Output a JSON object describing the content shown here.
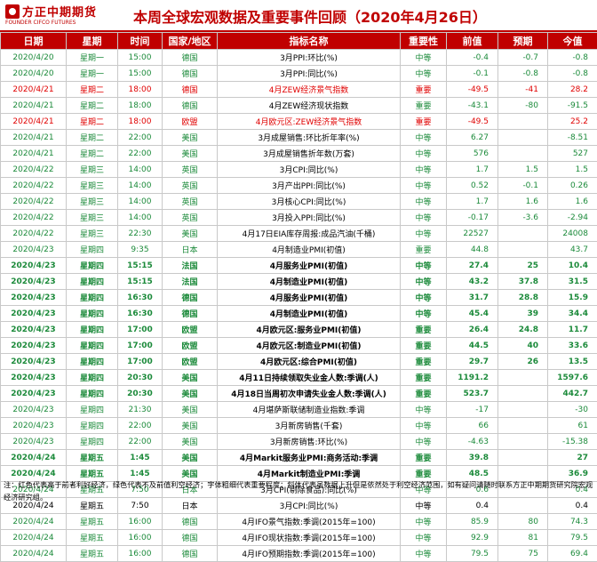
{
  "header": {
    "logo_cn": "方正中期期货",
    "logo_en": "FOUNDER CIFCO FUTURES",
    "title": "本周全球宏观数据及重要事件回顾（2020年4月26日）"
  },
  "colors": {
    "red": "#e00000",
    "green": "#1b8a3a",
    "black": "#000000",
    "header_bg": "#c00000"
  },
  "columns": [
    "日期",
    "星期",
    "时间",
    "国家/地区",
    "指标名称",
    "重要性",
    "前值",
    "预期",
    "今值"
  ],
  "rows": [
    {
      "date": "2020/4/20",
      "week": "星期一",
      "time": "15:00",
      "country": "德国",
      "name": "3月PPI:环比(%)",
      "importance": "中等",
      "prev": "-0.4",
      "forecast": "-0.7",
      "actual": "-0.8",
      "color": "green",
      "bold": false
    },
    {
      "date": "2020/4/20",
      "week": "星期一",
      "time": "15:00",
      "country": "德国",
      "name": "3月PPI:同比(%)",
      "importance": "中等",
      "prev": "-0.1",
      "forecast": "-0.8",
      "actual": "-0.8",
      "color": "green",
      "bold": false
    },
    {
      "date": "2020/4/21",
      "week": "星期二",
      "time": "18:00",
      "country": "德国",
      "name": "4月ZEW经济景气指数",
      "importance": "重要",
      "prev": "-49.5",
      "forecast": "-41",
      "actual": "28.2",
      "color": "red",
      "bold": false
    },
    {
      "date": "2020/4/21",
      "week": "星期二",
      "time": "18:00",
      "country": "德国",
      "name": "4月ZEW经济现状指数",
      "importance": "重要",
      "prev": "-43.1",
      "forecast": "-80",
      "actual": "-91.5",
      "color": "green",
      "bold": false
    },
    {
      "date": "2020/4/21",
      "week": "星期二",
      "time": "18:00",
      "country": "欧盟",
      "name": "4月欧元区:ZEW经济景气指数",
      "importance": "重要",
      "prev": "-49.5",
      "forecast": "",
      "actual": "25.2",
      "color": "red",
      "bold": false
    },
    {
      "date": "2020/4/21",
      "week": "星期二",
      "time": "22:00",
      "country": "美国",
      "name": "3月成屋销售:环比折年率(%)",
      "importance": "中等",
      "prev": "6.27",
      "forecast": "",
      "actual": "-8.51",
      "color": "green",
      "bold": false
    },
    {
      "date": "2020/4/21",
      "week": "星期二",
      "time": "22:00",
      "country": "美国",
      "name": "3月成屋销售折年数(万套)",
      "importance": "中等",
      "prev": "576",
      "forecast": "",
      "actual": "527",
      "color": "green",
      "bold": false
    },
    {
      "date": "2020/4/22",
      "week": "星期三",
      "time": "14:00",
      "country": "英国",
      "name": "3月CPI:同比(%)",
      "importance": "中等",
      "prev": "1.7",
      "forecast": "1.5",
      "actual": "1.5",
      "color": "green",
      "bold": false
    },
    {
      "date": "2020/4/22",
      "week": "星期三",
      "time": "14:00",
      "country": "英国",
      "name": "3月产出PPI:同比(%)",
      "importance": "中等",
      "prev": "0.52",
      "forecast": "-0.1",
      "actual": "0.26",
      "color": "green",
      "bold": false
    },
    {
      "date": "2020/4/22",
      "week": "星期三",
      "time": "14:00",
      "country": "英国",
      "name": "3月核心CPI:同比(%)",
      "importance": "中等",
      "prev": "1.7",
      "forecast": "1.6",
      "actual": "1.6",
      "color": "green",
      "bold": false
    },
    {
      "date": "2020/4/22",
      "week": "星期三",
      "time": "14:00",
      "country": "英国",
      "name": "3月投入PPI:同比(%)",
      "importance": "中等",
      "prev": "-0.17",
      "forecast": "-3.6",
      "actual": "-2.94",
      "color": "green",
      "bold": false
    },
    {
      "date": "2020/4/22",
      "week": "星期三",
      "time": "22:30",
      "country": "美国",
      "name": "4月17日EIA库存周报:成品汽油(千桶)",
      "importance": "中等",
      "prev": "22527",
      "forecast": "",
      "actual": "24008",
      "color": "green",
      "bold": false
    },
    {
      "date": "2020/4/23",
      "week": "星期四",
      "time": "9:35",
      "country": "日本",
      "name": "4月制造业PMI(初值)",
      "importance": "重要",
      "prev": "44.8",
      "forecast": "",
      "actual": "43.7",
      "color": "green",
      "bold": false
    },
    {
      "date": "2020/4/23",
      "week": "星期四",
      "time": "15:15",
      "country": "法国",
      "name": "4月服务业PMI(初值)",
      "importance": "中等",
      "prev": "27.4",
      "forecast": "25",
      "actual": "10.4",
      "color": "green",
      "bold": true
    },
    {
      "date": "2020/4/23",
      "week": "星期四",
      "time": "15:15",
      "country": "法国",
      "name": "4月制造业PMI(初值)",
      "importance": "中等",
      "prev": "43.2",
      "forecast": "37.8",
      "actual": "31.5",
      "color": "green",
      "bold": true
    },
    {
      "date": "2020/4/23",
      "week": "星期四",
      "time": "16:30",
      "country": "德国",
      "name": "4月服务业PMI(初值)",
      "importance": "中等",
      "prev": "31.7",
      "forecast": "28.8",
      "actual": "15.9",
      "color": "green",
      "bold": true
    },
    {
      "date": "2020/4/23",
      "week": "星期四",
      "time": "16:30",
      "country": "德国",
      "name": "4月制造业PMI(初值)",
      "importance": "中等",
      "prev": "45.4",
      "forecast": "39",
      "actual": "34.4",
      "color": "green",
      "bold": true
    },
    {
      "date": "2020/4/23",
      "week": "星期四",
      "time": "17:00",
      "country": "欧盟",
      "name": "4月欧元区:服务业PMI(初值)",
      "importance": "重要",
      "prev": "26.4",
      "forecast": "24.8",
      "actual": "11.7",
      "color": "green",
      "bold": true
    },
    {
      "date": "2020/4/23",
      "week": "星期四",
      "time": "17:00",
      "country": "欧盟",
      "name": "4月欧元区:制造业PMI(初值)",
      "importance": "重要",
      "prev": "44.5",
      "forecast": "40",
      "actual": "33.6",
      "color": "green",
      "bold": true
    },
    {
      "date": "2020/4/23",
      "week": "星期四",
      "time": "17:00",
      "country": "欧盟",
      "name": "4月欧元区:综合PMI(初值)",
      "importance": "重要",
      "prev": "29.7",
      "forecast": "26",
      "actual": "13.5",
      "color": "green",
      "bold": true
    },
    {
      "date": "2020/4/23",
      "week": "星期四",
      "time": "20:30",
      "country": "美国",
      "name": "4月11日持续领取失业金人数:季调(人)",
      "importance": "重要",
      "prev": "1191.2",
      "forecast": "",
      "actual": "1597.6",
      "color": "green",
      "bold": true
    },
    {
      "date": "2020/4/23",
      "week": "星期四",
      "time": "20:30",
      "country": "美国",
      "name": "4月18日当周初次申请失业金人数:季调(人)",
      "importance": "重要",
      "prev": "523.7",
      "forecast": "",
      "actual": "442.7",
      "color": "green",
      "bold": true
    },
    {
      "date": "2020/4/23",
      "week": "星期四",
      "time": "21:30",
      "country": "美国",
      "name": "4月堪萨斯联储制造业指数:季调",
      "importance": "中等",
      "prev": "-17",
      "forecast": "",
      "actual": "-30",
      "color": "green",
      "bold": false
    },
    {
      "date": "2020/4/23",
      "week": "星期四",
      "time": "22:00",
      "country": "美国",
      "name": "3月新房销售(千套)",
      "importance": "中等",
      "prev": "66",
      "forecast": "",
      "actual": "61",
      "color": "green",
      "bold": false
    },
    {
      "date": "2020/4/23",
      "week": "星期四",
      "time": "22:00",
      "country": "美国",
      "name": "3月新房销售:环比(%)",
      "importance": "中等",
      "prev": "-4.63",
      "forecast": "",
      "actual": "-15.38",
      "color": "green",
      "bold": false
    },
    {
      "date": "2020/4/24",
      "week": "星期五",
      "time": "1:45",
      "country": "美国",
      "name": "4月Markit服务业PMI:商务活动:季调",
      "importance": "重要",
      "prev": "39.8",
      "forecast": "",
      "actual": "27",
      "color": "green",
      "bold": true
    },
    {
      "date": "2020/4/24",
      "week": "星期五",
      "time": "1:45",
      "country": "美国",
      "name": "4月Markit制造业PMI:季调",
      "importance": "重要",
      "prev": "48.5",
      "forecast": "",
      "actual": "36.9",
      "color": "green",
      "bold": true
    },
    {
      "date": "2020/4/24",
      "week": "星期五",
      "time": "7:50",
      "country": "日本",
      "name": "3月CPI(剔除食品):同比(%)",
      "importance": "中等",
      "prev": "0.6",
      "forecast": "",
      "actual": "0.4",
      "color": "green",
      "bold": false
    },
    {
      "date": "2020/4/24",
      "week": "星期五",
      "time": "7:50",
      "country": "日本",
      "name": "3月CPI:同比(%)",
      "importance": "中等",
      "prev": "0.4",
      "forecast": "",
      "actual": "0.4",
      "color": "black",
      "bold": false
    },
    {
      "date": "2020/4/24",
      "week": "星期五",
      "time": "16:00",
      "country": "德国",
      "name": "4月IFO景气指数:季调(2015年=100)",
      "importance": "中等",
      "prev": "85.9",
      "forecast": "80",
      "actual": "74.3",
      "color": "green",
      "bold": false
    },
    {
      "date": "2020/4/24",
      "week": "星期五",
      "time": "16:00",
      "country": "德国",
      "name": "4月IFO现状指数:季调(2015年=100)",
      "importance": "中等",
      "prev": "92.9",
      "forecast": "81",
      "actual": "79.5",
      "color": "green",
      "bold": false
    },
    {
      "date": "2020/4/24",
      "week": "星期五",
      "time": "16:00",
      "country": "德国",
      "name": "4月IFO预期指数:季调(2015年=100)",
      "importance": "中等",
      "prev": "79.5",
      "forecast": "75",
      "actual": "69.4",
      "color": "green",
      "bold": false
    }
  ],
  "note": "注：红色代表高于前者利好经济，绿色代表不及前值利空经济；字体粗细代表重要程度；斜体代表虽数据上升但是依然处于利空经济范围，如有疑问请随时联系方正中期期货研究院宏观经济研究组。"
}
